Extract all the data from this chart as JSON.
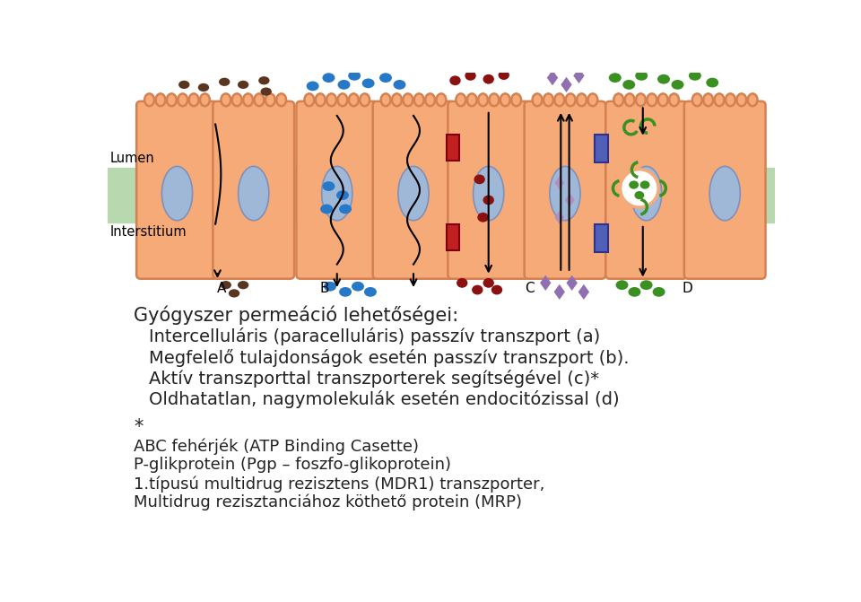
{
  "title_line": "Gyógyszer permeáció lehetőségei:",
  "text_lines": [
    "Intercelluláris (paracelluláris) passzív transzport (a)",
    "Megfelelő tulajdonságok esetén passzív transzport (b).",
    "Aktív transzporttal transzporterek segítségével (c)*",
    "Oldhatatlan, nagymolekulák esetén endocitózissal (d)"
  ],
  "footnote_star": "*",
  "footnote_lines": [
    "ABC fehérjék (ATP Binding Casette)",
    "P-glikprotein (Pgp – foszfo-glikoprotein)",
    "1.típusú multidrug rezisztens (MDR1) transzporter,",
    "Multidrug rezisztanciához köthető protein (MRP)"
  ],
  "bg_color": "#ffffff",
  "text_color": "#222222",
  "title_fontsize": 15,
  "text_fontsize": 14,
  "footnote_fontsize": 13,
  "cell_color": "#f5aa78",
  "cell_edge_color": "#d48050",
  "nucleus_color": "#a0b8d8",
  "nucleus_edge_color": "#8090b8",
  "band_color": "#b8d8b0",
  "lumen_label": "Lumen",
  "interstitium_label": "Interstitium"
}
